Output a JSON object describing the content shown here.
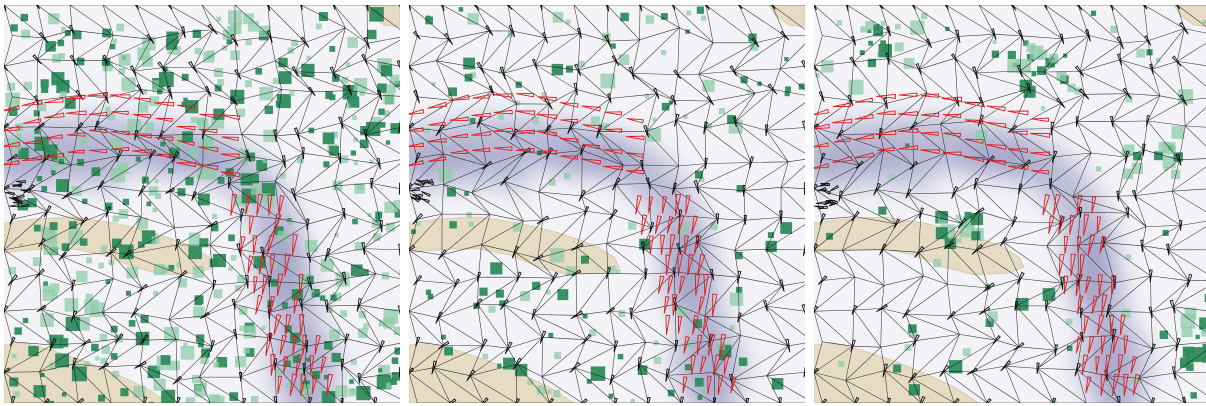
{
  "figure": {
    "panel_count": 3,
    "panels": [
      {
        "id": "left",
        "overlay": "dense-green-squares",
        "arrow_groups": [
          "red-west-flow",
          "red-south-curve",
          "black-mesh"
        ]
      },
      {
        "id": "middle",
        "overlay": "sparse-green-squares",
        "arrow_groups": [
          "red-west-flow",
          "red-south-curve",
          "black-mesh"
        ]
      },
      {
        "id": "right",
        "overlay": "clustered-green-squares",
        "arrow_groups": [
          "red-west-flow",
          "red-south-curve",
          "black-mesh"
        ]
      }
    ]
  },
  "colors": {
    "land": "#e6dcc4",
    "water": "#ffffff",
    "density_shade": "#6e6fa8",
    "mesh": "#111111",
    "marker_strong": "#2e8b5c",
    "marker_weak": "#8fcca8",
    "arrow_red": "#e01b1b",
    "arrow_black": "#111111"
  }
}
